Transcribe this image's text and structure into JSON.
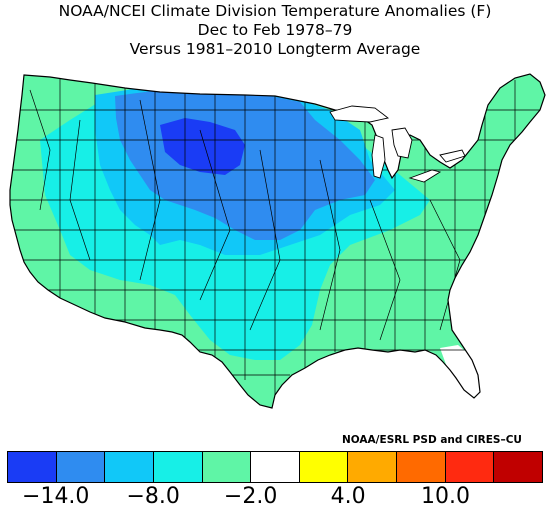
{
  "header": {
    "line1": "NOAA/NCEI Climate Division Temperature Anomalies (F)",
    "line2": "Dec to Feb 1978–79",
    "line3": "Versus 1981–2010 Longterm Average"
  },
  "credit": "NOAA/ESRL PSD and CIRES–CU",
  "legend": {
    "colors": [
      "#1a3cf5",
      "#2f8cf0",
      "#11c8f8",
      "#17efe7",
      "#5ff5a6",
      "#ffffff",
      "#ffff00",
      "#ffaa00",
      "#ff6a00",
      "#ff2a10",
      "#c00000"
    ],
    "tick_labels": [
      "−14.0",
      "−8.0",
      "−2.0",
      "4.0",
      "10.0"
    ]
  },
  "map": {
    "region": "Contiguous United States climate divisions",
    "ocean_color": "#ffffff",
    "border_color": "#000000"
  }
}
